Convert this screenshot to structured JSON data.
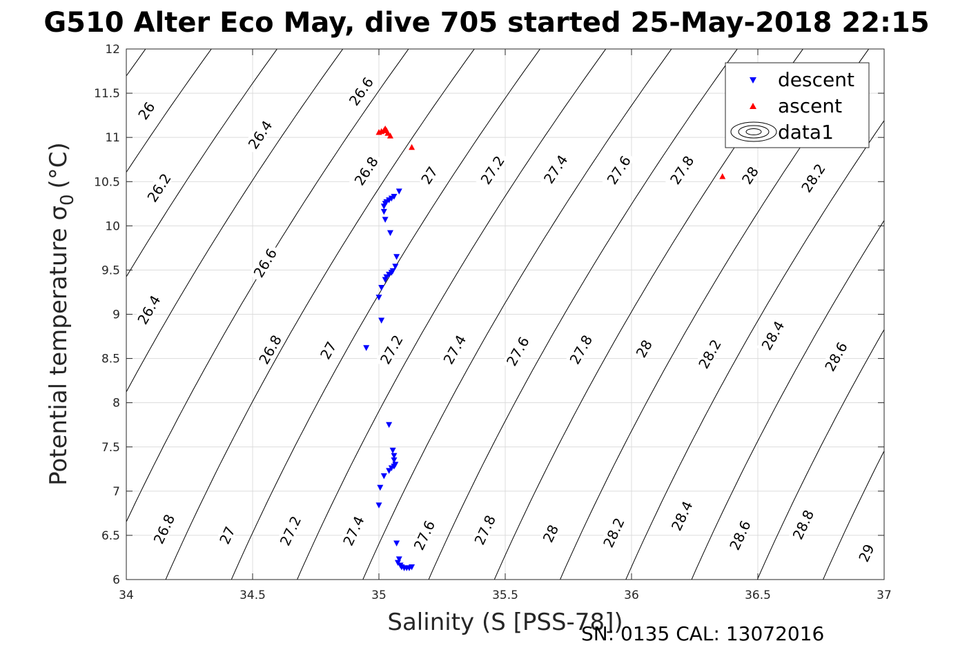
{
  "chart_data": {
    "type": "scatter",
    "title": "G510 Alter Eco May, dive 705 started 25-May-2018 22:15",
    "xlabel": "Salinity (S [PSS-78])",
    "ylabel": "Potential temperature σ",
    "ylabel_sub": "0",
    "ylabel_unit": "(°C)",
    "xlim": [
      34,
      37
    ],
    "ylim": [
      6,
      12
    ],
    "xticks": [
      "34",
      "34.5",
      "35",
      "35.5",
      "36",
      "36.5",
      "37"
    ],
    "yticks": [
      "6",
      "6.5",
      "7",
      "7.5",
      "8",
      "8.5",
      "9",
      "9.5",
      "10",
      "10.5",
      "11",
      "11.5",
      "12"
    ],
    "grid": true,
    "legend_position": "top-right",
    "annotation": "SN: 0135  CAL: 13072016",
    "series": [
      {
        "name": "descent",
        "marker": "triangle-down",
        "color": "#0000ff",
        "points": [
          [
            35.08,
            10.39
          ],
          [
            35.06,
            10.33
          ],
          [
            35.05,
            10.31
          ],
          [
            35.04,
            10.29
          ],
          [
            35.03,
            10.27
          ],
          [
            35.025,
            10.25
          ],
          [
            35.02,
            10.22
          ],
          [
            35.02,
            10.16
          ],
          [
            35.025,
            10.07
          ],
          [
            35.045,
            9.92
          ],
          [
            35.07,
            9.65
          ],
          [
            35.065,
            9.54
          ],
          [
            35.055,
            9.49
          ],
          [
            35.05,
            9.47
          ],
          [
            35.04,
            9.45
          ],
          [
            35.03,
            9.42
          ],
          [
            35.025,
            9.39
          ],
          [
            35.01,
            9.3
          ],
          [
            35.0,
            9.19
          ],
          [
            35.01,
            8.93
          ],
          [
            34.95,
            8.62
          ],
          [
            35.04,
            7.75
          ],
          [
            35.055,
            7.46
          ],
          [
            35.06,
            7.4
          ],
          [
            35.06,
            7.35
          ],
          [
            35.065,
            7.3
          ],
          [
            35.06,
            7.28
          ],
          [
            35.05,
            7.26
          ],
          [
            35.04,
            7.23
          ],
          [
            35.02,
            7.17
          ],
          [
            35.005,
            7.04
          ],
          [
            35.0,
            6.84
          ],
          [
            35.07,
            6.41
          ],
          [
            35.08,
            6.23
          ],
          [
            35.075,
            6.19
          ],
          [
            35.085,
            6.16
          ],
          [
            35.09,
            6.14
          ],
          [
            35.1,
            6.13
          ],
          [
            35.11,
            6.13
          ],
          [
            35.12,
            6.13
          ],
          [
            35.13,
            6.14
          ]
        ]
      },
      {
        "name": "ascent",
        "marker": "triangle-up",
        "color": "#ff0000",
        "points": [
          [
            35.0,
            11.06
          ],
          [
            35.01,
            11.07
          ],
          [
            35.02,
            11.08
          ],
          [
            35.025,
            11.1
          ],
          [
            35.03,
            11.08
          ],
          [
            35.035,
            11.05
          ],
          [
            35.045,
            11.02
          ],
          [
            35.13,
            10.89
          ],
          [
            36.36,
            10.56
          ]
        ]
      },
      {
        "name": "data1",
        "marker": "contour",
        "color": "#000000",
        "isopycnal_levels": [
          26,
          26.2,
          26.4,
          26.6,
          26.8,
          27,
          27.2,
          27.4,
          27.6,
          27.8,
          28,
          28.2,
          28.4,
          28.6,
          28.8,
          29
        ]
      }
    ],
    "contour_labels": [
      {
        "text": "26",
        "s": 34.08,
        "t": 11.3
      },
      {
        "text": "26.2",
        "s": 34.13,
        "t": 10.43
      },
      {
        "text": "26.4",
        "s": 34.09,
        "t": 9.05
      },
      {
        "text": "26.4",
        "s": 34.53,
        "t": 11.03
      },
      {
        "text": "26.6",
        "s": 34.55,
        "t": 9.58
      },
      {
        "text": "26.6",
        "s": 34.93,
        "t": 11.52
      },
      {
        "text": "26.8",
        "s": 34.15,
        "t": 6.57
      },
      {
        "text": "26.8",
        "s": 34.57,
        "t": 8.6
      },
      {
        "text": "26.8",
        "s": 34.95,
        "t": 10.62
      },
      {
        "text": "27",
        "s": 34.4,
        "t": 6.5
      },
      {
        "text": "27",
        "s": 34.8,
        "t": 8.59
      },
      {
        "text": "27",
        "s": 35.2,
        "t": 10.57
      },
      {
        "text": "27.2",
        "s": 34.65,
        "t": 6.55
      },
      {
        "text": "27.2",
        "s": 35.05,
        "t": 8.6
      },
      {
        "text": "27.2",
        "s": 35.45,
        "t": 10.63
      },
      {
        "text": "27.4",
        "s": 34.9,
        "t": 6.55
      },
      {
        "text": "27.4",
        "s": 35.3,
        "t": 8.6
      },
      {
        "text": "27.4",
        "s": 35.7,
        "t": 10.64
      },
      {
        "text": "27.6",
        "s": 35.18,
        "t": 6.5
      },
      {
        "text": "27.6",
        "s": 35.55,
        "t": 8.58
      },
      {
        "text": "27.6",
        "s": 35.95,
        "t": 10.63
      },
      {
        "text": "27.8",
        "s": 35.42,
        "t": 6.56
      },
      {
        "text": "27.8",
        "s": 35.8,
        "t": 8.6
      },
      {
        "text": "27.8",
        "s": 36.2,
        "t": 10.63
      },
      {
        "text": "28",
        "s": 35.68,
        "t": 6.52
      },
      {
        "text": "28",
        "s": 36.05,
        "t": 8.61
      },
      {
        "text": "28",
        "s": 36.47,
        "t": 10.57
      },
      {
        "text": "28.2",
        "s": 35.93,
        "t": 6.53
      },
      {
        "text": "28.2",
        "s": 36.31,
        "t": 8.55
      },
      {
        "text": "28.2",
        "s": 36.72,
        "t": 10.54
      },
      {
        "text": "28.4",
        "s": 36.2,
        "t": 6.72
      },
      {
        "text": "28.4",
        "s": 36.56,
        "t": 8.76
      },
      {
        "text": "28.6",
        "s": 36.43,
        "t": 6.5
      },
      {
        "text": "28.6",
        "s": 36.81,
        "t": 8.52
      },
      {
        "text": "28.8",
        "s": 36.68,
        "t": 6.62
      },
      {
        "text": "29",
        "s": 36.93,
        "t": 6.3
      }
    ]
  }
}
